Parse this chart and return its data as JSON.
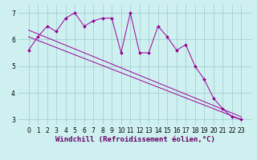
{
  "title": "Windchill (Refroidissement éolien,°C)",
  "x_hours": [
    0,
    1,
    2,
    3,
    4,
    5,
    6,
    7,
    8,
    9,
    10,
    11,
    12,
    13,
    14,
    15,
    16,
    17,
    18,
    19,
    20,
    21,
    22,
    23
  ],
  "y_main": [
    5.6,
    6.1,
    6.5,
    6.3,
    6.8,
    7.0,
    6.5,
    6.7,
    6.8,
    6.8,
    5.5,
    7.0,
    5.5,
    5.5,
    6.5,
    6.1,
    5.6,
    5.8,
    5.0,
    4.5,
    3.8,
    3.4,
    3.1,
    3.0
  ],
  "y_trend1_start": 6.35,
  "y_trend1_end": 3.1,
  "y_trend2_start": 6.1,
  "y_trend2_end": 3.0,
  "color": "#990099",
  "bg_color": "#cff0f0",
  "ylim": [
    2.8,
    7.3
  ],
  "yticks": [
    3,
    4,
    5,
    6,
    7
  ],
  "xticks": [
    0,
    1,
    2,
    3,
    4,
    5,
    6,
    7,
    8,
    9,
    10,
    11,
    12,
    13,
    14,
    15,
    16,
    17,
    18,
    19,
    20,
    21,
    22,
    23
  ],
  "grid_color": "#99cccc",
  "tick_fontsize": 5.5,
  "xlabel_fontsize": 6.5
}
